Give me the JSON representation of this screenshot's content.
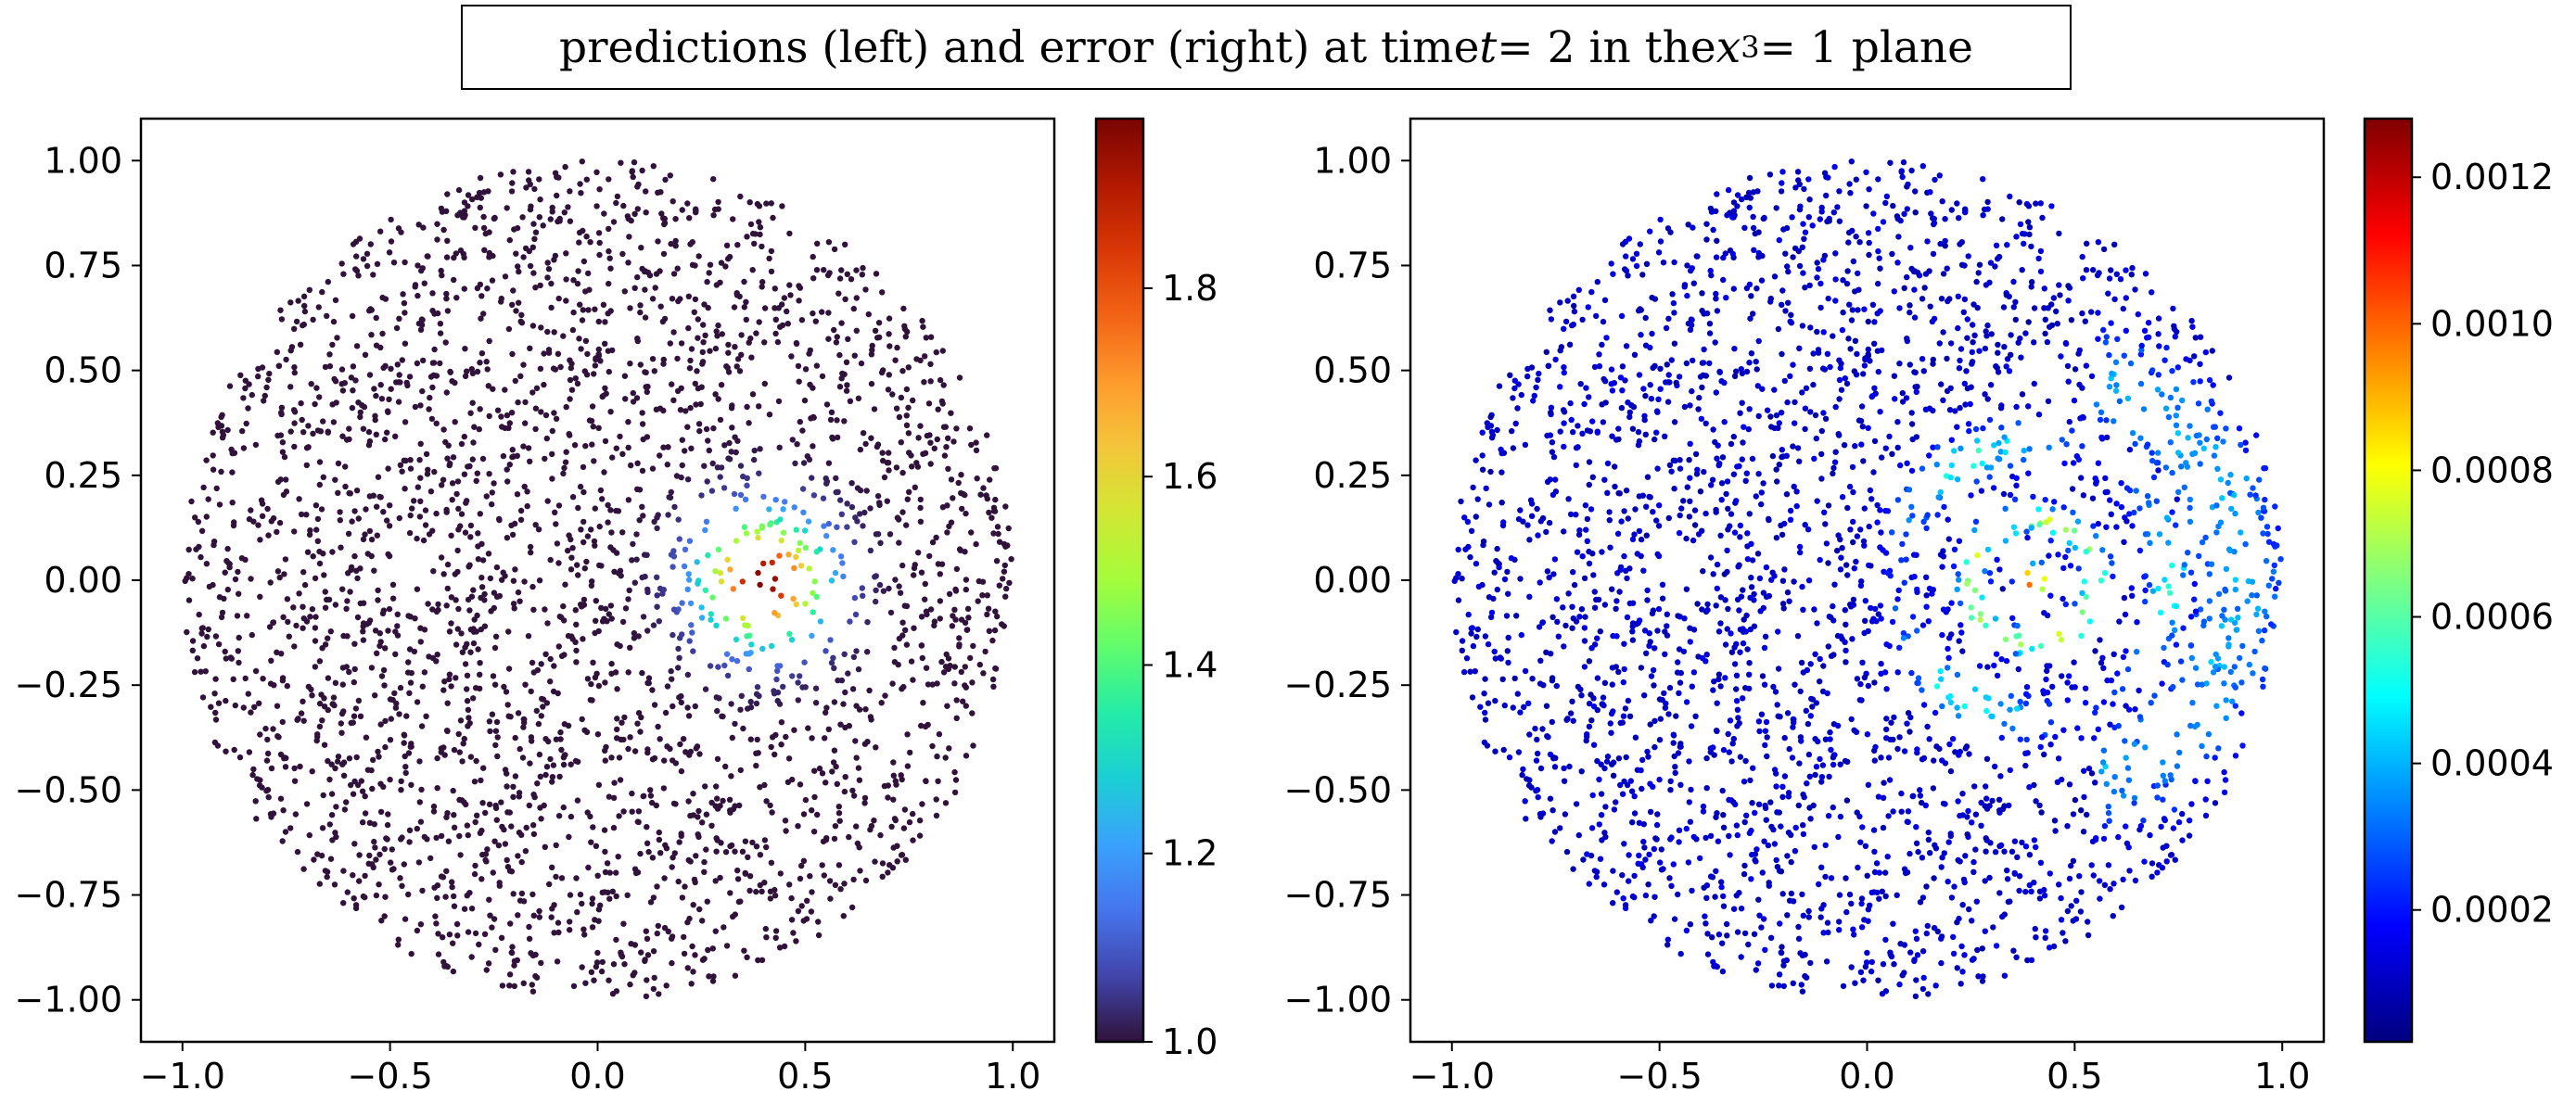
{
  "title": {
    "prefix": "predictions (left) and error (right) at time ",
    "t_var": "t",
    "t_eq": " = 2 in the ",
    "x_var": "x",
    "x_sub": "3",
    "x_eq": " = 1 plane"
  },
  "chart_data": [
    {
      "type": "scatter",
      "name": "predictions",
      "title": "",
      "xlabel": "",
      "ylabel": "",
      "xlim": [
        -1.1,
        1.1
      ],
      "ylim": [
        -1.1,
        1.1
      ],
      "xticks": [
        -1.0,
        -0.5,
        0.0,
        0.5,
        1.0
      ],
      "xtick_labels": [
        "−1.0",
        "−0.5",
        "0.0",
        "0.5",
        "1.0"
      ],
      "yticks": [
        1.0,
        0.75,
        0.5,
        0.25,
        0.0,
        -0.25,
        -0.5,
        -0.75,
        -1.0
      ],
      "ytick_labels": [
        "1.00",
        "0.75",
        "0.50",
        "0.25",
        "0.00",
        "−0.25",
        "−0.50",
        "−0.75",
        "−1.00"
      ],
      "domain": "unit disk, ~3000 sample points",
      "field": {
        "kind": "gaussian_bump",
        "center": [
          0.4,
          0.0
        ],
        "base": 1.0,
        "peak": 1.98,
        "sigma": 0.1
      },
      "colorbar": {
        "cmap": "turbo",
        "vmin": 1.0,
        "vmax": 1.98,
        "ticks": [
          1.0,
          1.2,
          1.4,
          1.6,
          1.8
        ],
        "tick_labels": [
          "1.0",
          "1.2",
          "1.4",
          "1.6",
          "1.8"
        ]
      }
    },
    {
      "type": "scatter",
      "name": "error",
      "title": "",
      "xlabel": "",
      "ylabel": "",
      "xlim": [
        -1.1,
        1.1
      ],
      "ylim": [
        -1.1,
        1.1
      ],
      "xticks": [
        -1.0,
        -0.5,
        0.0,
        0.5,
        1.0
      ],
      "xtick_labels": [
        "−1.0",
        "−0.5",
        "0.0",
        "0.5",
        "1.0"
      ],
      "yticks": [
        1.0,
        0.75,
        0.5,
        0.25,
        0.0,
        -0.25,
        -0.5,
        -0.75,
        -1.0
      ],
      "ytick_labels": [
        "1.00",
        "0.75",
        "0.50",
        "0.25",
        "0.00",
        "−0.25",
        "−0.50",
        "−0.75",
        "−1.00"
      ],
      "domain": "unit disk, ~3000 sample points",
      "field": {
        "kind": "rings",
        "center": [
          0.4,
          0.0
        ],
        "min": 2e-05,
        "max": 0.00128
      },
      "colorbar": {
        "cmap": "jet",
        "vmin": 2e-05,
        "vmax": 0.00128,
        "ticks": [
          0.0002,
          0.0004,
          0.0006,
          0.0008,
          0.001,
          0.0012
        ],
        "tick_labels": [
          "0.0002",
          "0.0004",
          "0.0006",
          "0.0008",
          "0.0010",
          "0.0012"
        ]
      }
    }
  ]
}
